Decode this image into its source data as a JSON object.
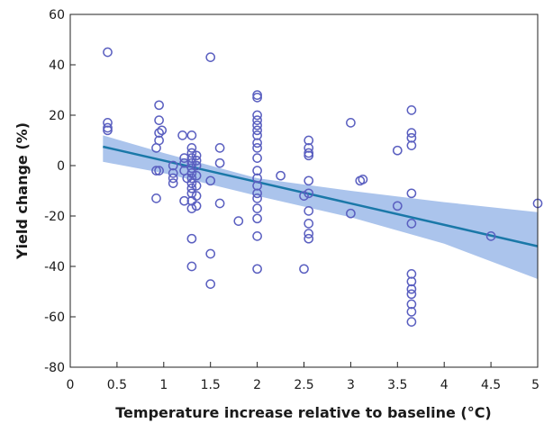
{
  "chart_data": {
    "type": "scatter",
    "title": "",
    "xlabel": "Temperature increase relative to baseline (°C)",
    "ylabel": "Yield change (%)",
    "xlim": [
      0,
      5
    ],
    "ylim": [
      -80,
      60
    ],
    "x_ticks": [
      "0",
      "0.5",
      "1",
      "1.5",
      "2",
      "2.5",
      "3",
      "3.5",
      "4",
      "4.5",
      "5"
    ],
    "y_ticks": [
      "-80",
      "-60",
      "-40",
      "-20",
      "0",
      "20",
      "40",
      "60"
    ],
    "grid": false,
    "legend": "none",
    "colors": {
      "points": "#5a5fc0",
      "fit_line": "#1a78a8",
      "band": "#8fb0e6"
    },
    "series": [
      {
        "kind": "points",
        "points": [
          {
            "x": 0.4,
            "y": 45
          },
          {
            "x": 0.4,
            "y": 17
          },
          {
            "x": 0.4,
            "y": 15
          },
          {
            "x": 0.4,
            "y": 14
          },
          {
            "x": 0.95,
            "y": 24
          },
          {
            "x": 0.95,
            "y": 18
          },
          {
            "x": 0.95,
            "y": 13
          },
          {
            "x": 0.98,
            "y": 14
          },
          {
            "x": 0.95,
            "y": 10
          },
          {
            "x": 0.92,
            "y": 7
          },
          {
            "x": 0.95,
            "y": -2
          },
          {
            "x": 0.92,
            "y": -2
          },
          {
            "x": 0.92,
            "y": -13
          },
          {
            "x": 1.1,
            "y": 0
          },
          {
            "x": 1.1,
            "y": -3
          },
          {
            "x": 1.1,
            "y": -5
          },
          {
            "x": 1.1,
            "y": -7
          },
          {
            "x": 1.2,
            "y": 12
          },
          {
            "x": 1.22,
            "y": 3
          },
          {
            "x": 1.22,
            "y": 1
          },
          {
            "x": 1.22,
            "y": -2
          },
          {
            "x": 1.25,
            "y": -5
          },
          {
            "x": 1.22,
            "y": -14
          },
          {
            "x": 1.3,
            "y": 12
          },
          {
            "x": 1.3,
            "y": 7
          },
          {
            "x": 1.3,
            "y": 5
          },
          {
            "x": 1.3,
            "y": 3
          },
          {
            "x": 1.3,
            "y": 1
          },
          {
            "x": 1.3,
            "y": -1
          },
          {
            "x": 1.3,
            "y": -3
          },
          {
            "x": 1.3,
            "y": -5
          },
          {
            "x": 1.3,
            "y": -7
          },
          {
            "x": 1.3,
            "y": -9
          },
          {
            "x": 1.3,
            "y": -11
          },
          {
            "x": 1.3,
            "y": -14
          },
          {
            "x": 1.3,
            "y": -17
          },
          {
            "x": 1.3,
            "y": -29
          },
          {
            "x": 1.3,
            "y": -40
          },
          {
            "x": 1.35,
            "y": 4
          },
          {
            "x": 1.35,
            "y": 2
          },
          {
            "x": 1.35,
            "y": 0
          },
          {
            "x": 1.35,
            "y": -4
          },
          {
            "x": 1.35,
            "y": -8
          },
          {
            "x": 1.35,
            "y": -12
          },
          {
            "x": 1.35,
            "y": -16
          },
          {
            "x": 1.5,
            "y": 43
          },
          {
            "x": 1.5,
            "y": -6
          },
          {
            "x": 1.5,
            "y": -35
          },
          {
            "x": 1.5,
            "y": -47
          },
          {
            "x": 1.6,
            "y": 7
          },
          {
            "x": 1.6,
            "y": 1
          },
          {
            "x": 1.6,
            "y": -15
          },
          {
            "x": 1.8,
            "y": -22
          },
          {
            "x": 2.0,
            "y": 28
          },
          {
            "x": 2.0,
            "y": 27
          },
          {
            "x": 2.0,
            "y": 20
          },
          {
            "x": 2.0,
            "y": 18
          },
          {
            "x": 2.0,
            "y": 16
          },
          {
            "x": 2.0,
            "y": 14
          },
          {
            "x": 2.0,
            "y": 12
          },
          {
            "x": 2.0,
            "y": 9
          },
          {
            "x": 2.0,
            "y": 7
          },
          {
            "x": 2.0,
            "y": 3
          },
          {
            "x": 2.0,
            "y": -2
          },
          {
            "x": 2.0,
            "y": -5
          },
          {
            "x": 2.0,
            "y": -8
          },
          {
            "x": 2.0,
            "y": -11
          },
          {
            "x": 2.0,
            "y": -13
          },
          {
            "x": 2.0,
            "y": -17
          },
          {
            "x": 2.0,
            "y": -21
          },
          {
            "x": 2.0,
            "y": -28
          },
          {
            "x": 2.0,
            "y": -41
          },
          {
            "x": 2.25,
            "y": -4
          },
          {
            "x": 2.5,
            "y": -12
          },
          {
            "x": 2.5,
            "y": -41
          },
          {
            "x": 2.55,
            "y": 10
          },
          {
            "x": 2.55,
            "y": 7
          },
          {
            "x": 2.55,
            "y": 5
          },
          {
            "x": 2.55,
            "y": 4
          },
          {
            "x": 2.55,
            "y": -6
          },
          {
            "x": 2.55,
            "y": -11
          },
          {
            "x": 2.55,
            "y": -18
          },
          {
            "x": 2.55,
            "y": -23
          },
          {
            "x": 2.55,
            "y": -27
          },
          {
            "x": 2.55,
            "y": -29
          },
          {
            "x": 3.0,
            "y": 17
          },
          {
            "x": 3.0,
            "y": -19
          },
          {
            "x": 3.1,
            "y": -6
          },
          {
            "x": 3.13,
            "y": -5.5
          },
          {
            "x": 3.5,
            "y": 6
          },
          {
            "x": 3.5,
            "y": -16
          },
          {
            "x": 3.65,
            "y": 22
          },
          {
            "x": 3.65,
            "y": 13
          },
          {
            "x": 3.65,
            "y": 11
          },
          {
            "x": 3.65,
            "y": 8
          },
          {
            "x": 3.65,
            "y": -11
          },
          {
            "x": 3.65,
            "y": -23
          },
          {
            "x": 3.65,
            "y": -43
          },
          {
            "x": 3.65,
            "y": -46
          },
          {
            "x": 3.65,
            "y": -49
          },
          {
            "x": 3.65,
            "y": -51
          },
          {
            "x": 3.65,
            "y": -55
          },
          {
            "x": 3.65,
            "y": -58
          },
          {
            "x": 3.65,
            "y": -62
          },
          {
            "x": 4.5,
            "y": -28
          },
          {
            "x": 5.0,
            "y": -15
          }
        ]
      },
      {
        "kind": "regression",
        "line": [
          {
            "x": 0.35,
            "y": 7.5
          },
          {
            "x": 5.0,
            "y": -32
          }
        ],
        "band": {
          "x": [
            0.35,
            1.0,
            2.0,
            3.0,
            4.0,
            5.0
          ],
          "upper": [
            12,
            5,
            -5,
            -10,
            -14.5,
            -18.5
          ],
          "lower": [
            1.5,
            -3,
            -12,
            -20.5,
            -31,
            -45
          ]
        }
      }
    ]
  }
}
